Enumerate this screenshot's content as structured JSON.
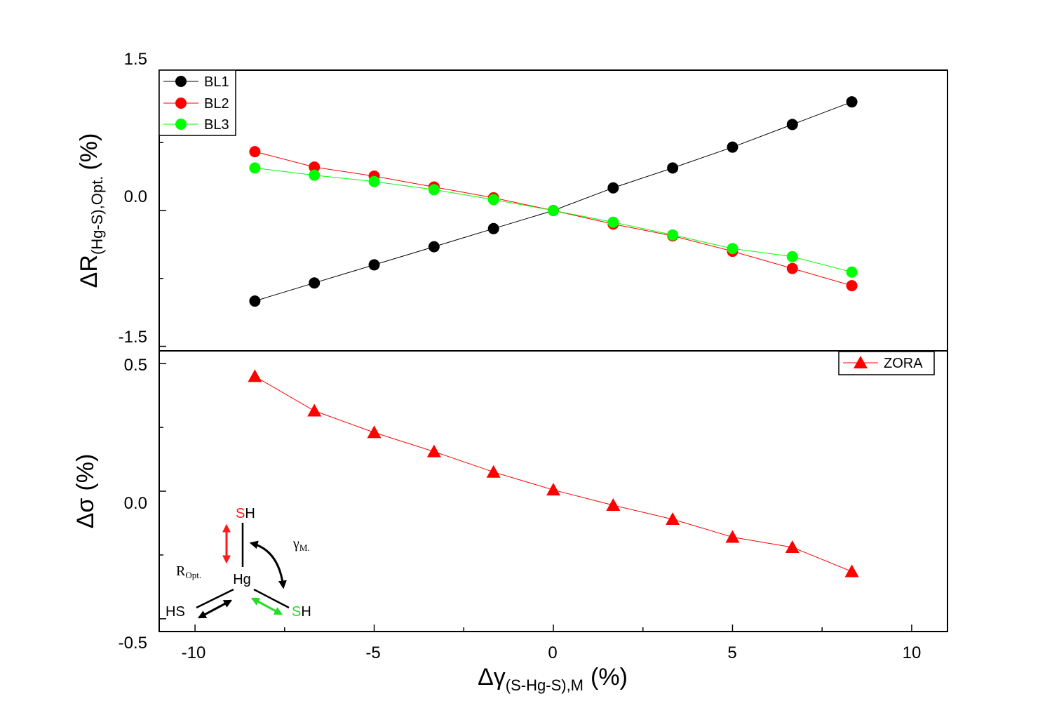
{
  "chart_data": [
    {
      "panel": "top",
      "type": "line",
      "x": [
        -8.33,
        -6.67,
        -5,
        -3.33,
        -1.67,
        0,
        1.67,
        3.33,
        5,
        6.67,
        8.33
      ],
      "series": [
        {
          "name": "BL1",
          "color": "#000000",
          "marker": "circle",
          "values": [
            -1.0,
            -0.8,
            -0.6,
            -0.4,
            -0.2,
            0.0,
            0.25,
            0.47,
            0.7,
            0.95,
            1.2
          ]
        },
        {
          "name": "BL2",
          "color": "#ff0000",
          "marker": "circle",
          "values": [
            0.65,
            0.48,
            0.38,
            0.26,
            0.14,
            0.0,
            -0.15,
            -0.28,
            -0.45,
            -0.64,
            -0.83
          ]
        },
        {
          "name": "BL3",
          "color": "#00ff00",
          "marker": "circle",
          "values": [
            0.47,
            0.39,
            0.32,
            0.23,
            0.12,
            0.0,
            -0.13,
            -0.27,
            -0.42,
            -0.51,
            -0.68
          ]
        }
      ],
      "ylabel_main": "ΔR",
      "ylabel_sub": "(Hg-S),Opt.",
      "ylabel_unit": "(%)",
      "xlim": [
        -11,
        11
      ],
      "ylim": [
        -1.55,
        1.55
      ],
      "yticks": [
        -1.5,
        0.0,
        1.5
      ],
      "ytick_labels": [
        "-1.5",
        "0.0",
        "1.5"
      ],
      "legend_position": "top-left"
    },
    {
      "panel": "bottom",
      "type": "line",
      "x": [
        -8.33,
        -6.67,
        -5,
        -3.33,
        -1.67,
        0,
        1.67,
        3.33,
        5,
        6.67,
        8.33
      ],
      "series": [
        {
          "name": "ZORA",
          "color": "#ff0000",
          "marker": "triangle",
          "values": [
            0.45,
            0.315,
            0.23,
            0.155,
            0.075,
            0.005,
            -0.055,
            -0.11,
            -0.18,
            -0.22,
            -0.315
          ]
        }
      ],
      "ylabel_main": "Δσ",
      "ylabel_unit": "(%)",
      "xlabel_main": "Δγ",
      "xlabel_sub": "(S-Hg-S),M",
      "xlabel_unit": "(%)",
      "xlim": [
        -11,
        11
      ],
      "ylim": [
        -0.55,
        0.55
      ],
      "yticks": [
        -0.5,
        0.0,
        0.5
      ],
      "ytick_labels": [
        "-0.5",
        "0.0",
        "0.5"
      ],
      "xticks": [
        -10,
        -5,
        0,
        5,
        10
      ],
      "xtick_labels": [
        "-10",
        "-5",
        "0",
        "5",
        "10"
      ],
      "legend_position": "top-right"
    }
  ],
  "inset": {
    "center_atom": "Hg",
    "top_s": "S",
    "top_h": "H",
    "right_s": "S",
    "right_h": "H",
    "left_label": "HS",
    "r_label_main": "R",
    "r_label_sub": "Opt.",
    "gamma_main": "γ",
    "gamma_sub": "M.",
    "color_red": "#ff1a1a",
    "color_green": "#22dd22",
    "color_black": "#000000"
  }
}
